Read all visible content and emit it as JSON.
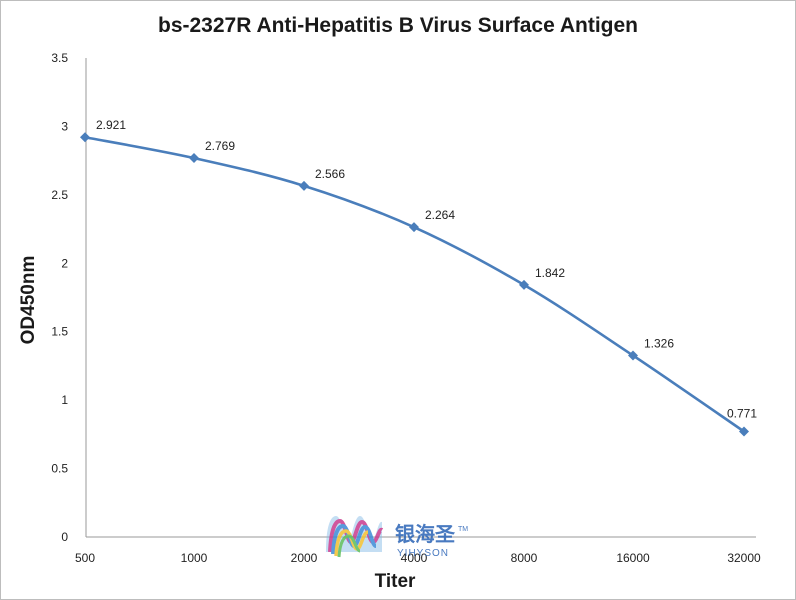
{
  "chart_data": {
    "type": "line",
    "title": "bs-2327R Anti-Hepatitis B Virus Surface Antigen",
    "xlabel": "Titer",
    "ylabel": "OD450nm",
    "categories": [
      "500",
      "1000",
      "2000",
      "4000",
      "8000",
      "16000",
      "32000"
    ],
    "series": [
      {
        "values": [
          2.921,
          2.769,
          2.566,
          2.264,
          1.842,
          1.326,
          0.771
        ],
        "labels": [
          "2.921",
          "2.769",
          "2.566",
          "2.264",
          "1.842",
          "1.326",
          "0.771"
        ]
      }
    ],
    "ylim": [
      0,
      3.5
    ],
    "yticks": [
      "0",
      "0.5",
      "1",
      "1.5",
      "2",
      "2.5",
      "3",
      "3.5"
    ],
    "grid": false,
    "legend": "none",
    "line_color": "#4a7ebb"
  },
  "watermark": {
    "cn": "银海圣",
    "en": "YIHYSON",
    "tm": "TM"
  }
}
